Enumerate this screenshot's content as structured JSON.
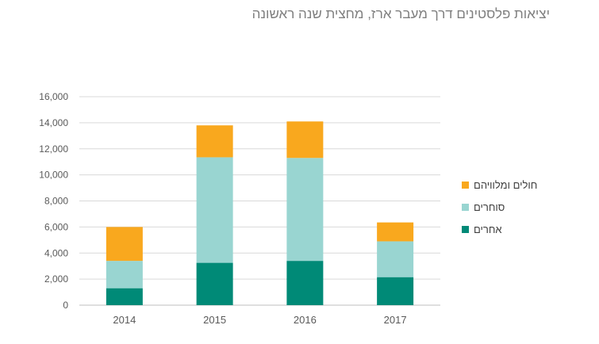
{
  "chart_data": {
    "type": "bar",
    "stacked": true,
    "title": "יציאות פלסטינים דרך מעבר ארז, מחצית שנה ראשונה",
    "xlabel": "",
    "ylabel": "",
    "categories": [
      "2014",
      "2015",
      "2016",
      "2017"
    ],
    "ylim": [
      0,
      16000
    ],
    "yticks": [
      0,
      2000,
      4000,
      6000,
      8000,
      10000,
      12000,
      14000,
      16000
    ],
    "ytick_labels": [
      "0",
      "2,000",
      "4,000",
      "6,000",
      "8,000",
      "10,000",
      "12,000",
      "14,000",
      "16,000"
    ],
    "grid": true,
    "legend_position": "right",
    "series": [
      {
        "name": "אחרים",
        "color": "#008a77",
        "values": [
          1300,
          3250,
          3400,
          2150
        ]
      },
      {
        "name": "סוחרים",
        "color": "#99d5d1",
        "values": [
          2100,
          8100,
          7900,
          2750
        ]
      },
      {
        "name": "חולים  ומלוויהם",
        "color": "#f9a81e",
        "values": [
          2600,
          2450,
          2800,
          1450
        ]
      }
    ]
  }
}
